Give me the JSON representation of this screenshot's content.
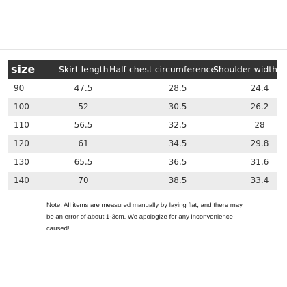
{
  "table": {
    "header": [
      "size",
      "Skirt length",
      "Half chest circumference",
      "Shoulder width"
    ],
    "rows": [
      [
        "90",
        "47.5",
        "28.5",
        "24.4"
      ],
      [
        "100",
        "52",
        "30.5",
        "26.2"
      ],
      [
        "110",
        "56.5",
        "32.5",
        "28"
      ],
      [
        "120",
        "61",
        "34.5",
        "29.8"
      ],
      [
        "130",
        "65.5",
        "36.5",
        "31.6"
      ],
      [
        "140",
        "70",
        "38.5",
        "33.4"
      ]
    ]
  },
  "note": "Note: All items are measured manually by laying flat, and there may be an error of about 1-3cm. We apologize for any inconvenience caused!"
}
